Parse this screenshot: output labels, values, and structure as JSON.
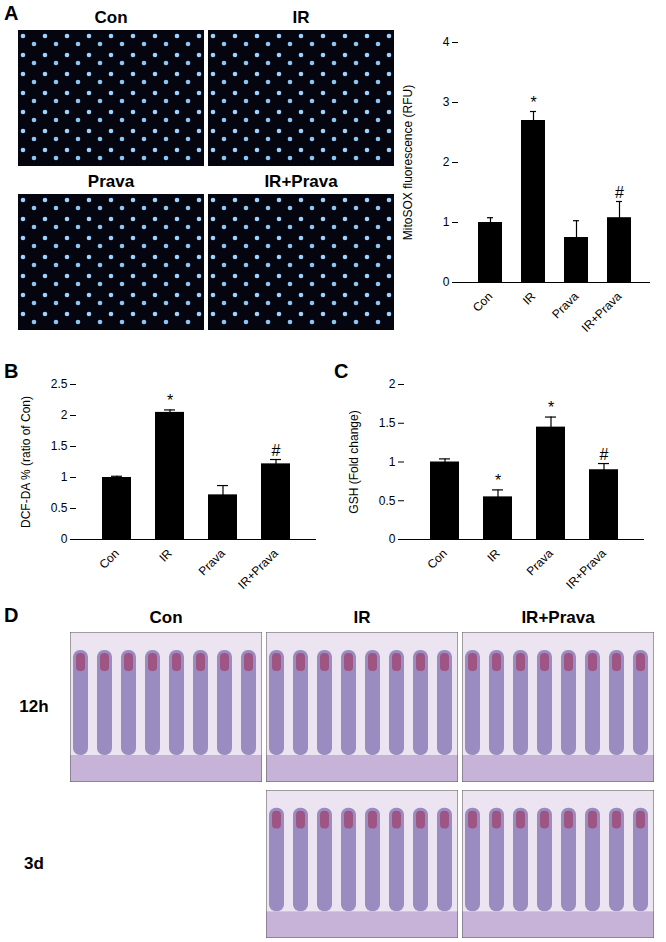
{
  "chart_data": [
    {
      "panel": "A",
      "type": "bar",
      "y_label": "MitoSOX fluorescence (RFU)",
      "categories": [
        "Con",
        "IR",
        "Prava",
        "IR+Prava"
      ],
      "values": [
        1.0,
        2.7,
        0.75,
        1.08
      ],
      "errors": [
        0.08,
        0.15,
        0.28,
        0.27
      ],
      "significance": [
        null,
        "*",
        null,
        "#"
      ],
      "color": "#000000",
      "ylim": [
        0,
        4
      ],
      "yticks": [
        0,
        1,
        2,
        3,
        4
      ]
    },
    {
      "panel": "B",
      "type": "bar",
      "y_label": "DCF-DA % (ratio of Con)",
      "categories": [
        "Con",
        "IR",
        "Prava",
        "IR+Prava"
      ],
      "values": [
        1.0,
        2.05,
        0.72,
        1.22
      ],
      "errors": [
        0.02,
        0.04,
        0.15,
        0.07
      ],
      "significance": [
        null,
        "*",
        null,
        "#"
      ],
      "color": "#000000",
      "ylim": [
        0,
        2.5
      ],
      "yticks": [
        0,
        0.5,
        1,
        1.5,
        2,
        2.5
      ]
    },
    {
      "panel": "C",
      "type": "bar",
      "y_label": "GSH (Fold change)",
      "categories": [
        "Con",
        "IR",
        "Prava",
        "IR+Prava"
      ],
      "values": [
        1.0,
        0.55,
        1.45,
        0.9
      ],
      "errors": [
        0.04,
        0.09,
        0.13,
        0.08
      ],
      "significance": [
        null,
        "*",
        "*",
        "#"
      ],
      "color": "#000000",
      "ylim": [
        0,
        2
      ],
      "yticks": [
        0,
        0.5,
        1,
        1.5,
        2
      ]
    }
  ],
  "images": {
    "A": {
      "panel": "A",
      "labels": [
        "Con",
        "IR",
        "Prava",
        "IR+Prava"
      ]
    },
    "D": {
      "panel": "D",
      "columns": [
        "Con",
        "IR",
        "IR+Prava"
      ],
      "rows": [
        "12h",
        "3d"
      ]
    }
  }
}
